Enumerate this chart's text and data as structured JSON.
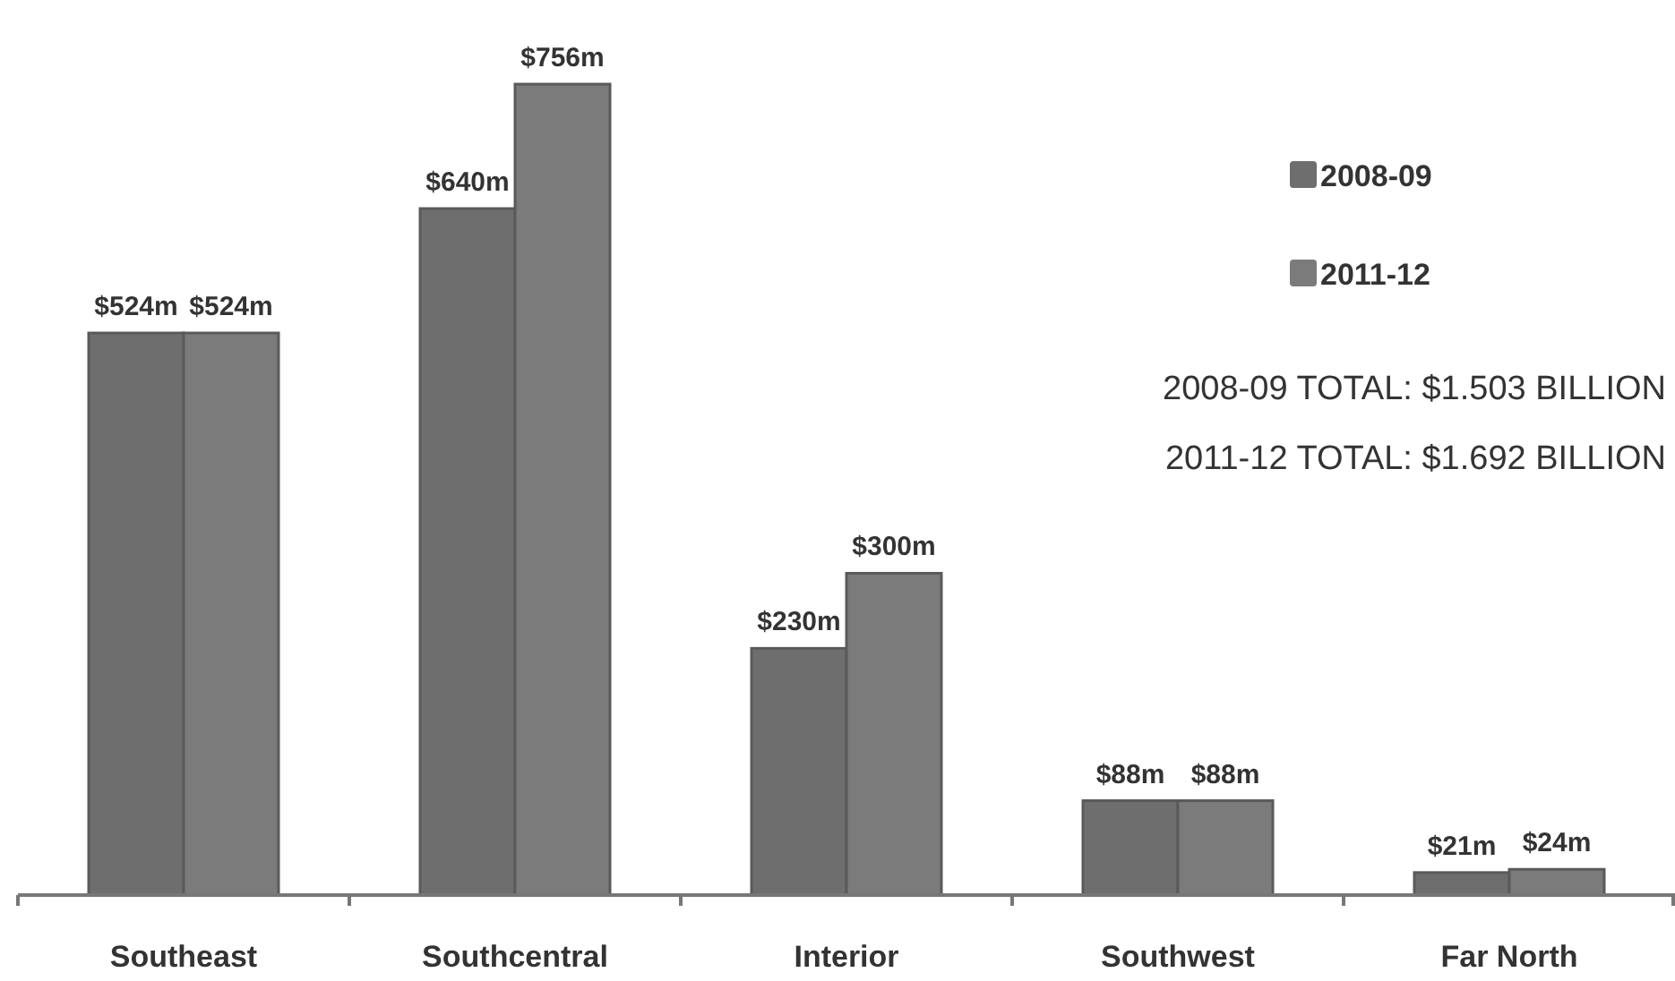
{
  "chart_data": {
    "type": "bar",
    "categories": [
      "Southeast",
      "Southcentral",
      "Interior",
      "Southwest",
      "Far North"
    ],
    "series": [
      {
        "name": "2008-09",
        "color": "#6e6e6e",
        "values": [
          524,
          640,
          230,
          88,
          21
        ],
        "value_labels": [
          "$524m",
          "$640m",
          "$230m",
          "$88m",
          "$21m"
        ]
      },
      {
        "name": "2011-12",
        "color": "#7b7b7b",
        "values": [
          524,
          756,
          300,
          88,
          24
        ],
        "value_labels": [
          "$524m",
          "$756m",
          "$300m",
          "$88m",
          "$24m"
        ]
      }
    ],
    "legend": "top right",
    "annotations": [
      "2008-09 TOTAL: $1.503 BILLION",
      "2011-12 TOTAL: $1.692 BILLION"
    ]
  }
}
